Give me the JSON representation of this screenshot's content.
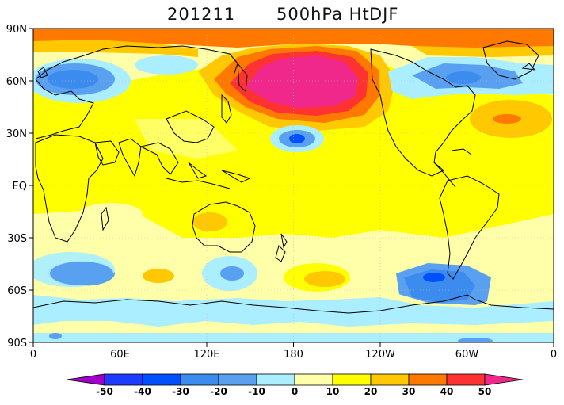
{
  "title": {
    "date": "201211",
    "variable": "500hPa Ht",
    "season": "DJF"
  },
  "map": {
    "lat_labels": [
      "90N",
      "60N",
      "30N",
      "EQ",
      "30S",
      "60S",
      "90S"
    ],
    "lon_labels": [
      "0",
      "60E",
      "120E",
      "180",
      "120W",
      "60W",
      "0"
    ]
  },
  "colorbar": {
    "labels": [
      "-50",
      "-40",
      "-30",
      "-20",
      "-10",
      "0",
      "10",
      "20",
      "30",
      "40",
      "50"
    ],
    "colors": [
      "#a000c8",
      "#1e3cff",
      "#0050ff",
      "#3c8cf0",
      "#5aa0f0",
      "#aaeeff",
      "#ffffaa",
      "#ffff00",
      "#ffc800",
      "#ff7800",
      "#ff3232",
      "#f0288c"
    ]
  },
  "chart_data": {
    "type": "heatmap",
    "variable": "500hPa Ht",
    "period": "201211",
    "season": "DJF",
    "color_levels": [
      -50,
      -40,
      -30,
      -20,
      -10,
      0,
      10,
      20,
      30,
      40,
      50
    ],
    "lat_range": [
      -90,
      90
    ],
    "lon_range": [
      0,
      360
    ]
  }
}
